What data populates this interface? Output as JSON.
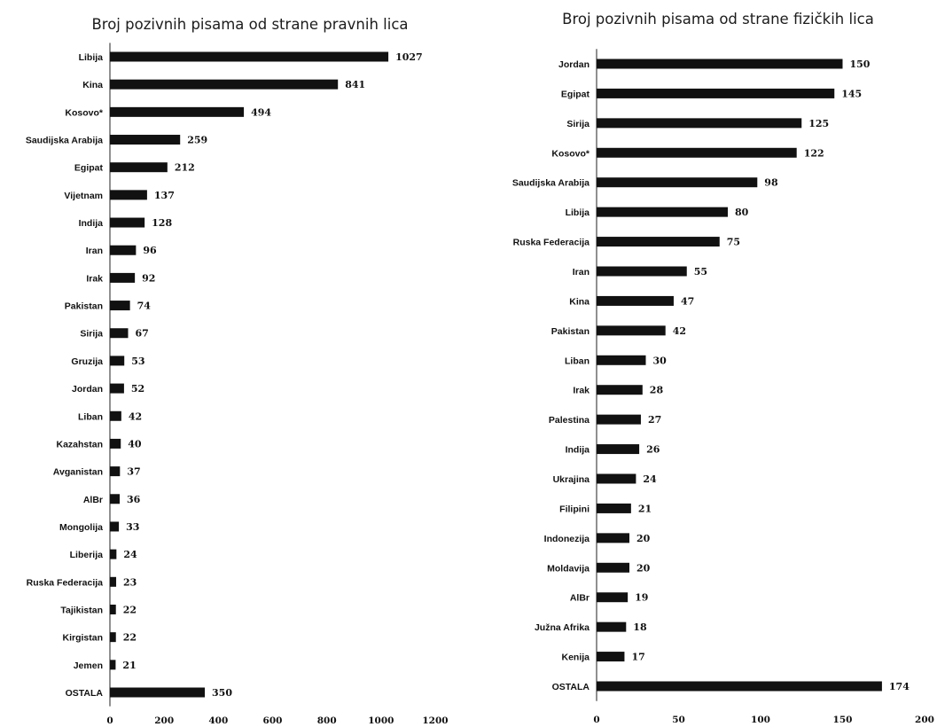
{
  "chart_data": [
    {
      "type": "bar",
      "orientation": "horizontal",
      "title": "Broj pozivnih pisama od strane pravnih lica",
      "categories": [
        "Libija",
        "Kina",
        "Kosovo*",
        "Saudijska Arabija",
        "Egipat",
        "Vijetnam",
        "Indija",
        "Iran",
        "Irak",
        "Pakistan",
        "Sirija",
        "Gruzija",
        "Jordan",
        "Liban",
        "Kazahstan",
        "Avganistan",
        "AlBr",
        "Mongolija",
        "Liberija",
        "Ruska Federacija",
        "Tajikistan",
        "Kirgistan",
        "Jemen",
        "OSTALA"
      ],
      "values": [
        1027,
        841,
        494,
        259,
        212,
        137,
        128,
        96,
        92,
        74,
        67,
        53,
        52,
        42,
        40,
        37,
        36,
        33,
        24,
        23,
        22,
        22,
        21,
        350
      ],
      "xlim": [
        0,
        1200
      ],
      "xticks": [
        0,
        200,
        400,
        600,
        800,
        1000,
        1200
      ],
      "bar_color": "#111111",
      "grid": false,
      "legend": "none"
    },
    {
      "type": "bar",
      "orientation": "horizontal",
      "title": "Broj pozivnih pisama od strane fizičkih lica",
      "categories": [
        "Jordan",
        "Egipat",
        "Sirija",
        "Kosovo*",
        "Saudijska Arabija",
        "Libija",
        "Ruska Federacija",
        "Iran",
        "Kina",
        "Pakistan",
        "Liban",
        "Irak",
        "Palestina",
        "Indija",
        "Ukrajina",
        "Filipini",
        "Indonezija",
        "Moldavija",
        "AlBr",
        "Južna Afrika",
        "Kenija",
        "OSTALA"
      ],
      "values": [
        150,
        145,
        125,
        122,
        98,
        80,
        75,
        55,
        47,
        42,
        30,
        28,
        27,
        26,
        24,
        21,
        20,
        20,
        19,
        18,
        17,
        174
      ],
      "xlim": [
        0,
        200
      ],
      "xticks": [
        0,
        50,
        100,
        150,
        200
      ],
      "bar_color": "#111111",
      "grid": false,
      "legend": "none"
    }
  ]
}
